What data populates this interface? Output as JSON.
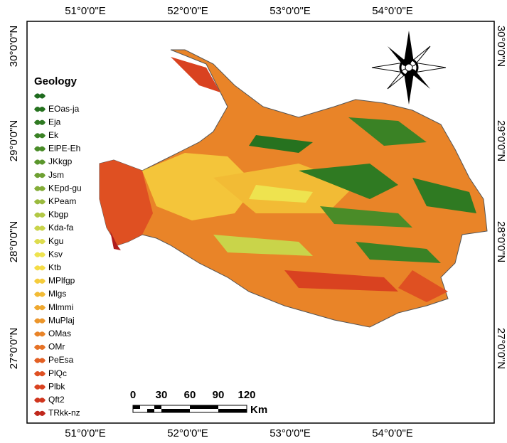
{
  "frame": {
    "top_labels": [
      "51°0'0\"E",
      "52°0'0\"E",
      "53°0'0\"E",
      "54°0'0\"E"
    ],
    "bottom_labels": [
      "51°0'0\"E",
      "52°0'0\"E",
      "53°0'0\"E",
      "54°0'0\"E"
    ],
    "left_labels": [
      "30°0'0\"N",
      "29°0'0\"N",
      "28°0'0\"N",
      "27°0'0\"N"
    ],
    "right_labels": [
      "30°0'0\"N",
      "29°0'0\"N",
      "28°0'0\"N",
      "27°0'0\"N"
    ]
  },
  "legend": {
    "title": "Geology",
    "items": [
      {
        "color": "#1e6b1e"
      },
      {
        "label": "EOas-ja",
        "color": "#26721f"
      },
      {
        "label": "Eja",
        "color": "#2f7a22"
      },
      {
        "label": "Ek",
        "color": "#3a8225"
      },
      {
        "label": "ElPE-Eh",
        "color": "#4a8c28"
      },
      {
        "label": "JKkgp",
        "color": "#5a962c"
      },
      {
        "label": "Jsm",
        "color": "#6ea032"
      },
      {
        "label": "KEpd-gu",
        "color": "#84ad38"
      },
      {
        "label": "KPeam",
        "color": "#9aba3e"
      },
      {
        "label": "Kbgp",
        "color": "#b2c845"
      },
      {
        "label": "Kda-fa",
        "color": "#c9d44a"
      },
      {
        "label": "Kgu",
        "color": "#dddc4e"
      },
      {
        "label": "Ksv",
        "color": "#eee34f"
      },
      {
        "label": "Ktb",
        "color": "#f5dc45"
      },
      {
        "label": "MPlfgp",
        "color": "#f5cc3c"
      },
      {
        "label": "Mlgs",
        "color": "#f2bb35"
      },
      {
        "label": "Mlmmi",
        "color": "#efa82f"
      },
      {
        "label": "MuPlaj",
        "color": "#ec962b"
      },
      {
        "label": "OMas",
        "color": "#e98428"
      },
      {
        "label": "OMr",
        "color": "#e67226"
      },
      {
        "label": "PeEsa",
        "color": "#e36024"
      },
      {
        "label": "PlQc",
        "color": "#df5022"
      },
      {
        "label": "Plbk",
        "color": "#d94220"
      },
      {
        "label": "Qft2",
        "color": "#d0361e"
      },
      {
        "label": "TRkk-nz",
        "color": "#c0281c"
      }
    ]
  },
  "scale_bar": {
    "ticks": [
      "0",
      "30",
      "60",
      "90",
      "120"
    ],
    "unit": "Km"
  }
}
